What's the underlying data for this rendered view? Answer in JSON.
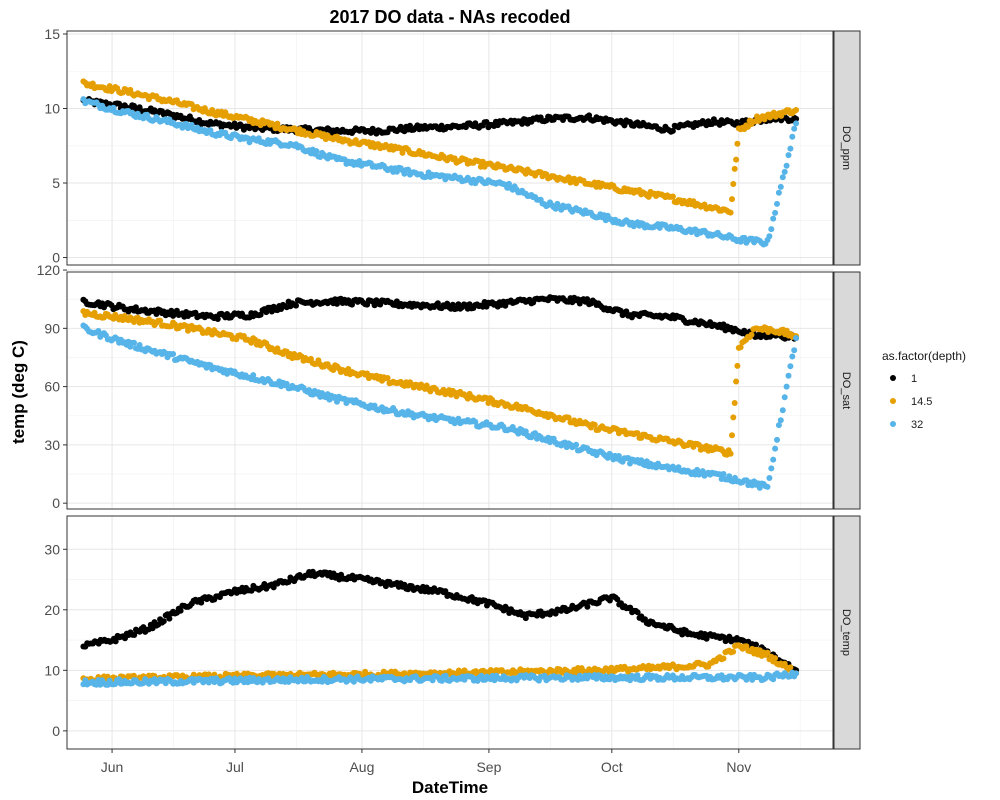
{
  "chart_data": {
    "type": "scatter",
    "title": "2017 DO data - NAs recoded",
    "xlabel": "DateTime",
    "ylabel": "temp (deg C)",
    "x_ticks": [
      "Jun",
      "Jul",
      "Aug",
      "Sep",
      "Oct",
      "Nov"
    ],
    "xlim": [
      "2017-05-21",
      "2017-11-24"
    ],
    "grid": true,
    "legend": {
      "title": "as.factor(depth)",
      "position": "right",
      "entries": [
        {
          "label": "1",
          "color": "#000000"
        },
        {
          "label": "14.5",
          "color": "#E69F00"
        },
        {
          "label": "32",
          "color": "#56B4E9"
        }
      ]
    },
    "panels": [
      {
        "strip": "DO_ppm",
        "ylim": [
          -0.5,
          15.2
        ],
        "y_ticks": [
          0,
          5,
          10,
          15
        ],
        "series": [
          {
            "name": "1",
            "color": "#000000",
            "x": [
              "2017-05-25",
              "2017-06-05",
              "2017-06-15",
              "2017-06-25",
              "2017-07-05",
              "2017-07-15",
              "2017-07-25",
              "2017-08-05",
              "2017-08-15",
              "2017-08-25",
              "2017-09-05",
              "2017-09-15",
              "2017-09-25",
              "2017-10-05",
              "2017-10-15",
              "2017-10-25",
              "2017-11-01",
              "2017-11-05",
              "2017-11-10",
              "2017-11-15"
            ],
            "y": [
              10.5,
              10.1,
              9.6,
              9.0,
              8.7,
              8.6,
              8.5,
              8.5,
              8.7,
              8.8,
              9.0,
              9.3,
              9.4,
              9.0,
              8.6,
              9.1,
              9.0,
              9.2,
              9.4,
              9.3
            ]
          },
          {
            "name": "14.5",
            "color": "#E69F00",
            "x": [
              "2017-05-25",
              "2017-06-05",
              "2017-06-15",
              "2017-06-25",
              "2017-07-05",
              "2017-07-15",
              "2017-07-25",
              "2017-08-05",
              "2017-08-15",
              "2017-08-25",
              "2017-09-05",
              "2017-09-15",
              "2017-09-25",
              "2017-10-05",
              "2017-10-15",
              "2017-10-25",
              "2017-10-30",
              "2017-11-01",
              "2017-11-05",
              "2017-11-10",
              "2017-11-15"
            ],
            "y": [
              11.7,
              11.1,
              10.5,
              9.8,
              9.2,
              8.6,
              8.0,
              7.5,
              7.0,
              6.5,
              6.0,
              5.5,
              5.0,
              4.5,
              4.0,
              3.4,
              3.1,
              8.5,
              9.3,
              9.6,
              9.9
            ]
          },
          {
            "name": "32",
            "color": "#56B4E9",
            "x": [
              "2017-05-25",
              "2017-06-05",
              "2017-06-15",
              "2017-06-25",
              "2017-07-05",
              "2017-07-15",
              "2017-07-25",
              "2017-08-05",
              "2017-08-15",
              "2017-08-25",
              "2017-09-05",
              "2017-09-15",
              "2017-09-25",
              "2017-10-05",
              "2017-10-15",
              "2017-10-25",
              "2017-11-01",
              "2017-11-08",
              "2017-11-15"
            ],
            "y": [
              10.5,
              9.7,
              9.1,
              8.4,
              7.9,
              7.6,
              6.6,
              6.1,
              5.6,
              5.3,
              4.9,
              3.6,
              3.0,
              2.3,
              2.0,
              1.6,
              1.2,
              1.0,
              9.0
            ]
          }
        ]
      },
      {
        "strip": "DO_sat",
        "ylim": [
          -3,
          119
        ],
        "y_ticks": [
          0,
          30,
          60,
          90,
          120
        ],
        "series": [
          {
            "name": "1",
            "color": "#000000",
            "x": [
              "2017-05-25",
              "2017-06-05",
              "2017-06-15",
              "2017-06-25",
              "2017-07-05",
              "2017-07-15",
              "2017-07-25",
              "2017-08-05",
              "2017-08-15",
              "2017-08-25",
              "2017-09-05",
              "2017-09-15",
              "2017-09-25",
              "2017-10-05",
              "2017-10-15",
              "2017-10-25",
              "2017-11-01",
              "2017-11-05",
              "2017-11-10",
              "2017-11-15"
            ],
            "y": [
              104,
              100,
              98,
              96,
              97,
              103,
              104,
              103,
              102,
              101,
              103,
              105,
              104,
              97,
              96,
              92,
              89,
              86,
              87,
              85
            ]
          },
          {
            "name": "14.5",
            "color": "#E69F00",
            "x": [
              "2017-05-25",
              "2017-06-05",
              "2017-06-15",
              "2017-06-25",
              "2017-07-05",
              "2017-07-15",
              "2017-07-25",
              "2017-08-05",
              "2017-08-15",
              "2017-08-25",
              "2017-09-05",
              "2017-09-15",
              "2017-09-25",
              "2017-10-05",
              "2017-10-15",
              "2017-10-25",
              "2017-10-30",
              "2017-11-01",
              "2017-11-05",
              "2017-11-10",
              "2017-11-15"
            ],
            "y": [
              98,
              95,
              92,
              88,
              84,
              76,
              70,
              64,
              60,
              56,
              51,
              46,
              40,
              36,
              32,
              28,
              26,
              80,
              90,
              89,
              86
            ]
          },
          {
            "name": "32",
            "color": "#56B4E9",
            "x": [
              "2017-05-25",
              "2017-06-05",
              "2017-06-15",
              "2017-06-25",
              "2017-07-05",
              "2017-07-15",
              "2017-07-25",
              "2017-08-05",
              "2017-08-15",
              "2017-08-25",
              "2017-09-05",
              "2017-09-15",
              "2017-09-25",
              "2017-10-05",
              "2017-10-15",
              "2017-10-25",
              "2017-11-01",
              "2017-11-08",
              "2017-11-15"
            ],
            "y": [
              90,
              82,
              76,
              70,
              65,
              60,
              54,
              49,
              45,
              42,
              39,
              33,
              27,
              22,
              18,
              15,
              12,
              8,
              85
            ]
          }
        ]
      },
      {
        "strip": "DO_temp",
        "ylim": [
          -3,
          35.5
        ],
        "y_ticks": [
          0,
          10,
          20,
          30
        ],
        "series": [
          {
            "name": "1",
            "color": "#000000",
            "x": [
              "2017-05-25",
              "2017-06-01",
              "2017-06-10",
              "2017-06-20",
              "2017-07-01",
              "2017-07-10",
              "2017-07-20",
              "2017-08-01",
              "2017-08-10",
              "2017-08-20",
              "2017-09-01",
              "2017-09-10",
              "2017-09-20",
              "2017-10-01",
              "2017-10-10",
              "2017-10-20",
              "2017-11-01",
              "2017-11-08",
              "2017-11-15"
            ],
            "y": [
              14,
              15,
              17,
              21,
              23,
              24,
              26,
              25,
              24,
              23,
              21,
              19,
              20,
              22,
              18,
              16,
              15,
              13,
              10
            ]
          },
          {
            "name": "14.5",
            "color": "#E69F00",
            "x": [
              "2017-05-25",
              "2017-06-10",
              "2017-07-01",
              "2017-07-20",
              "2017-08-10",
              "2017-09-01",
              "2017-09-20",
              "2017-10-10",
              "2017-10-25",
              "2017-11-01",
              "2017-11-08",
              "2017-11-15"
            ],
            "y": [
              8.5,
              8.7,
              9.0,
              9.2,
              9.4,
              9.6,
              9.9,
              10.3,
              11.0,
              14.0,
              12.5,
              9.5
            ]
          },
          {
            "name": "32",
            "color": "#56B4E9",
            "x": [
              "2017-05-25",
              "2017-06-10",
              "2017-07-01",
              "2017-07-20",
              "2017-08-10",
              "2017-09-01",
              "2017-09-20",
              "2017-10-10",
              "2017-10-25",
              "2017-11-01",
              "2017-11-08",
              "2017-11-15"
            ],
            "y": [
              8.0,
              8.1,
              8.3,
              8.5,
              8.6,
              8.7,
              8.8,
              8.8,
              8.8,
              8.8,
              8.8,
              9.5
            ]
          }
        ]
      }
    ]
  }
}
